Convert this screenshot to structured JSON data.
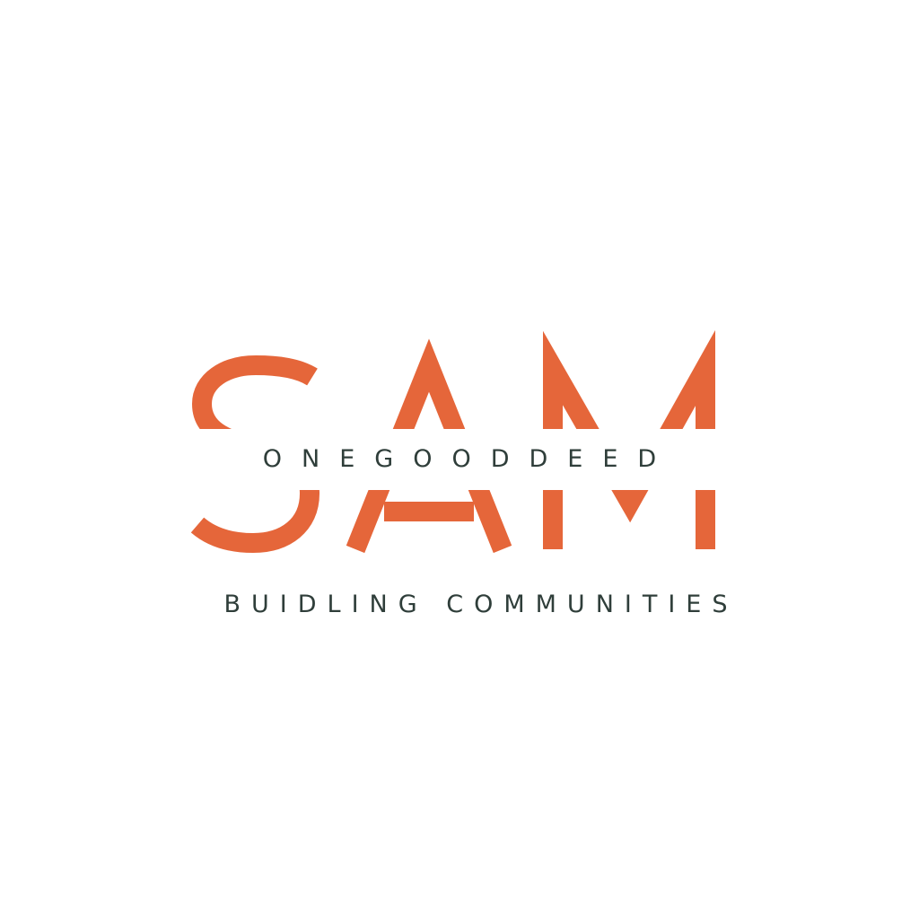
{
  "logo": {
    "wordmark": "SAM",
    "subtitle": "ONEGOODDEED",
    "tagline": "BUIDLING COMMUNITIES",
    "colors": {
      "accent": "#e5663a",
      "text": "#2f3e3a",
      "background": "#ffffff"
    }
  }
}
